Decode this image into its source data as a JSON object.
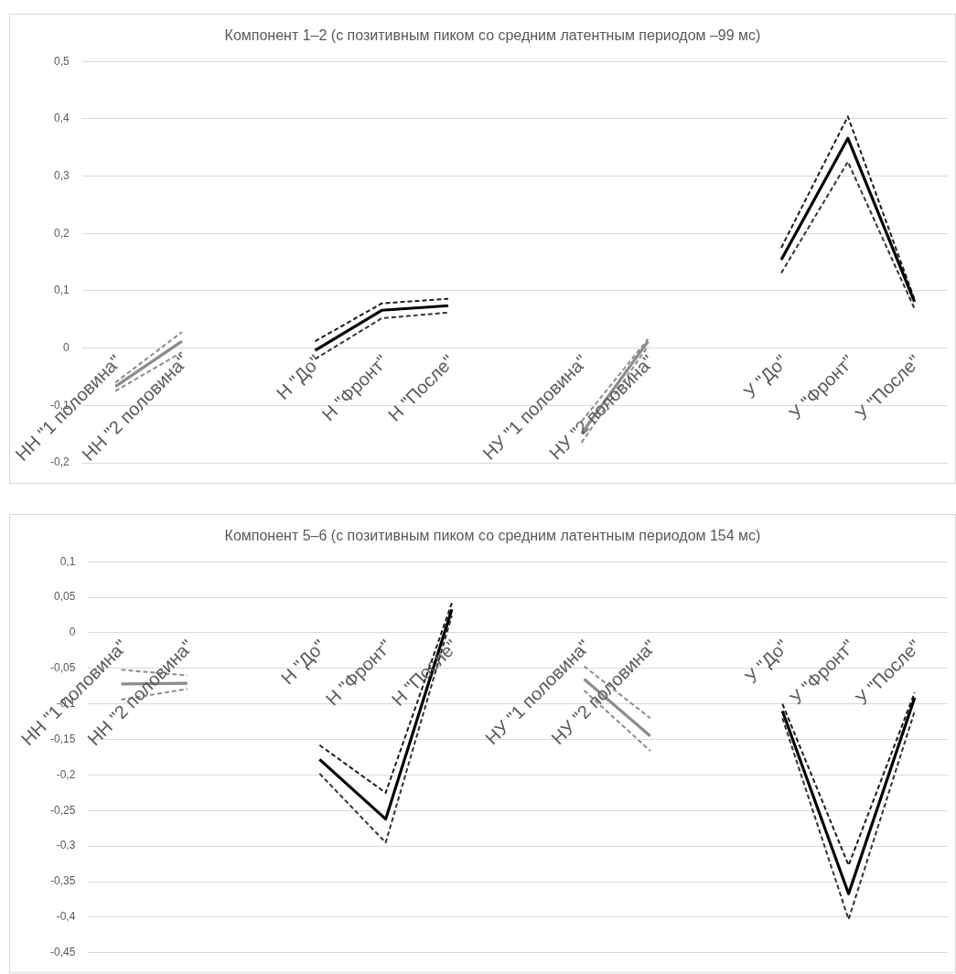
{
  "chart_data": [
    {
      "type": "line",
      "title": "Компонент 1–2 (с позитивным пиком со средним латентным периодом –99 мс)",
      "categories": [
        "НН \"1 половина\"",
        "НН \"2 половина\"",
        null,
        "Н \"До\"",
        "Н \"Фронт\"",
        "Н \"После\"",
        null,
        "НУ \"1 половина\"",
        "НУ \"2 половина\"",
        null,
        "У \"До\"",
        "У \"Фронт\"",
        "У \"После\""
      ],
      "series": [
        {
          "color": "#8c8c8c",
          "line_style": "solid",
          "values": [
            -0.067,
            0.012,
            null,
            null,
            null,
            null,
            null,
            -0.149,
            0.012,
            null,
            null,
            null,
            null
          ]
        },
        {
          "color": "#8c8c8c",
          "line_style": "dashed",
          "values": [
            -0.06,
            0.028,
            null,
            null,
            null,
            null,
            null,
            -0.128,
            0.016,
            null,
            null,
            null,
            null
          ]
        },
        {
          "color": "#8c8c8c",
          "line_style": "dashed",
          "values": [
            -0.075,
            -0.007,
            null,
            null,
            null,
            null,
            null,
            -0.165,
            0.004,
            null,
            null,
            null,
            null
          ]
        },
        {
          "color": "#000000",
          "line_style": "solid",
          "values": [
            null,
            null,
            null,
            -0.004,
            0.066,
            0.074,
            null,
            null,
            null,
            null,
            0.154,
            0.366,
            0.081
          ]
        },
        {
          "color": "#1c1c1c",
          "line_style": "dashed",
          "values": [
            null,
            null,
            null,
            0.012,
            0.078,
            0.086,
            null,
            null,
            null,
            null,
            0.175,
            0.404,
            0.085
          ]
        },
        {
          "color": "#333333",
          "line_style": "dashed",
          "values": [
            null,
            null,
            null,
            -0.019,
            0.052,
            0.062,
            null,
            null,
            null,
            null,
            0.131,
            0.325,
            0.069
          ]
        }
      ],
      "ylim": [
        -0.2,
        0.5
      ],
      "yticks": [
        {
          "value": -0.2,
          "label": "-0,2"
        },
        {
          "value": -0.1,
          "label": "-0,1"
        },
        0,
        {
          "value": 0.1,
          "label": "0,1"
        },
        {
          "value": 0.2,
          "label": "0,2"
        },
        {
          "value": 0.3,
          "label": "0,3"
        },
        {
          "value": 0.4,
          "label": "0,4"
        },
        {
          "value": 0.5,
          "label": "0,5"
        }
      ],
      "grid": "y",
      "marker": "none"
    },
    {
      "type": "line",
      "title": "Компонент 5–6 (с позитивным пиком со средним латентным периодом 154 мс)",
      "categories": [
        "НН \"1 половина\"",
        "НН \"2 половина\"",
        null,
        "Н \"До\"",
        "Н \"Фронт\"",
        "Н \"После\"",
        null,
        "НУ \"1 половина\"",
        "НУ \"2 половина\"",
        null,
        "У \"До\"",
        "У \"Фронт\"",
        "У \"После\""
      ],
      "series": [
        {
          "color": "#8c8c8c",
          "line_style": "solid",
          "values": [
            -0.072,
            -0.071,
            null,
            null,
            null,
            null,
            null,
            -0.065,
            -0.145,
            null,
            null,
            null,
            null
          ]
        },
        {
          "color": "#8c8c8c",
          "line_style": "dashed",
          "values": [
            -0.052,
            -0.06,
            null,
            null,
            null,
            null,
            null,
            -0.047,
            -0.12,
            null,
            null,
            null,
            null
          ]
        },
        {
          "color": "#8c8c8c",
          "line_style": "dashed",
          "values": [
            -0.094,
            -0.079,
            null,
            null,
            null,
            null,
            null,
            -0.081,
            -0.166,
            null,
            null,
            null,
            null
          ]
        },
        {
          "color": "#000000",
          "line_style": "solid",
          "values": [
            null,
            null,
            null,
            -0.178,
            -0.262,
            0.033,
            null,
            null,
            null,
            null,
            -0.11,
            -0.367,
            -0.091
          ]
        },
        {
          "color": "#1c1c1c",
          "line_style": "dashed",
          "values": [
            null,
            null,
            null,
            -0.158,
            -0.225,
            0.042,
            null,
            null,
            null,
            null,
            -0.1,
            -0.327,
            -0.084
          ]
        },
        {
          "color": "#333333",
          "line_style": "dashed",
          "values": [
            null,
            null,
            null,
            -0.198,
            -0.295,
            0.024,
            null,
            null,
            null,
            null,
            -0.12,
            -0.403,
            -0.11
          ]
        }
      ],
      "ylim": [
        -0.45,
        0.1
      ],
      "yticks": [
        {
          "value": -0.45,
          "label": "-0,45"
        },
        {
          "value": -0.4,
          "label": "-0,4"
        },
        {
          "value": -0.35,
          "label": "-0,35"
        },
        {
          "value": -0.3,
          "label": "-0,3"
        },
        {
          "value": -0.25,
          "label": "-0,25"
        },
        {
          "value": -0.2,
          "label": "-0,2"
        },
        {
          "value": -0.15,
          "label": "-0,15"
        },
        {
          "value": -0.1,
          "label": "-0,1"
        },
        {
          "value": -0.05,
          "label": "-0,05"
        },
        0,
        {
          "value": 0.05,
          "label": "0,05"
        },
        {
          "value": 0.1,
          "label": "0,1"
        }
      ],
      "grid": "y",
      "marker": "none"
    }
  ]
}
